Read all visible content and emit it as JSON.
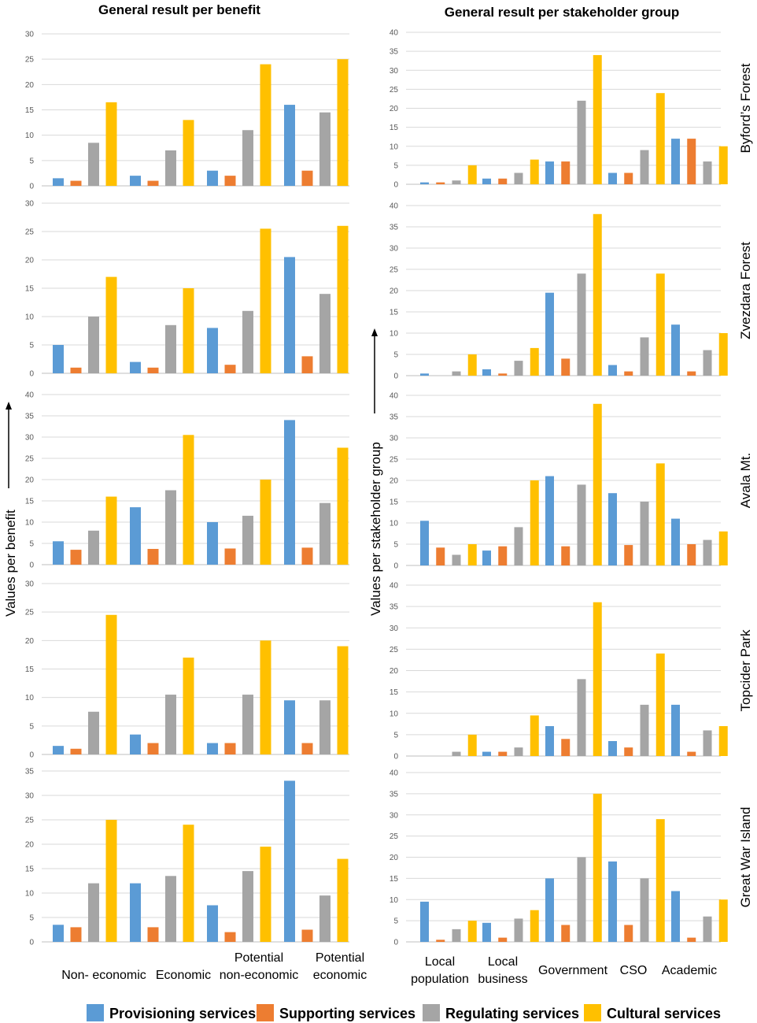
{
  "chart_data": {
    "type": "bar",
    "left_title": "General result per benefit",
    "right_title": "General result per stakeholder group",
    "left_ylabel": "Values per benefit",
    "right_ylabel": "Values per stakeholder group",
    "left_categories": [
      "Non- economic",
      "Economic",
      "Potential non-economic",
      "Potential economic"
    ],
    "left_category_lines": [
      [
        "Non- economic"
      ],
      [
        "Economic"
      ],
      [
        "Potential",
        "non-economic"
      ],
      [
        "Potential",
        "economic"
      ]
    ],
    "right_categories": [
      "Local population",
      "Local business",
      "Government",
      "CSO",
      "Academic"
    ],
    "right_category_lines": [
      [
        "Local",
        "population"
      ],
      [
        "Local",
        "business"
      ],
      [
        "Government"
      ],
      [
        "CSO"
      ],
      [
        "Academic"
      ]
    ],
    "series_names": [
      "Provisioning services",
      "Supporting services",
      "Regulating services",
      "Cultural services"
    ],
    "colors": [
      "#5B9BD5",
      "#ED7D31",
      "#A5A5A5",
      "#FFC000"
    ],
    "sites": [
      {
        "name": "Byford’s Forest",
        "left": {
          "ymax": 30,
          "ticks": [
            "0",
            "5",
            "10",
            "15",
            "20",
            "25",
            "30"
          ],
          "series": [
            [
              1.5,
              2,
              3,
              16
            ],
            [
              1,
              1,
              2,
              3
            ],
            [
              8.5,
              7,
              11,
              14.5
            ],
            [
              16.5,
              13,
              24,
              25
            ]
          ]
        },
        "right": {
          "ymax": 40,
          "ticks": [
            "0",
            "5",
            "10",
            "15",
            "20",
            "25",
            "30",
            "35",
            "40"
          ],
          "series": [
            [
              0.5,
              1.5,
              6,
              3,
              12
            ],
            [
              0.5,
              1.5,
              6,
              3,
              12
            ],
            [
              1,
              3,
              22,
              9,
              6
            ],
            [
              5,
              6.5,
              34,
              24,
              10
            ]
          ]
        }
      },
      {
        "name": "Zvezdara Forest",
        "left": {
          "ymax": 30,
          "ticks": [
            "0",
            "5",
            "10",
            "15",
            "20",
            "25",
            "30"
          ],
          "series": [
            [
              5,
              2,
              8,
              20.5
            ],
            [
              1,
              1,
              1.5,
              3
            ],
            [
              10,
              8.5,
              11,
              14
            ],
            [
              17,
              15,
              25.5,
              26
            ]
          ]
        },
        "right": {
          "ymax": 40,
          "ticks": [
            "0",
            "5",
            "10",
            "15",
            "20",
            "25",
            "30",
            "35",
            "40"
          ],
          "series": [
            [
              0.5,
              1.5,
              19.5,
              2.5,
              12
            ],
            [
              0,
              0.5,
              4,
              1,
              1
            ],
            [
              1,
              3.5,
              24,
              9,
              6
            ],
            [
              5,
              6.5,
              38,
              24,
              10
            ]
          ]
        }
      },
      {
        "name": "Avala Mt.",
        "left": {
          "ymax": 40,
          "ticks": [
            "0",
            "5",
            "10",
            "15",
            "20",
            "25",
            "30",
            "35",
            "40"
          ],
          "series": [
            [
              5.5,
              13.5,
              10,
              34
            ],
            [
              3.5,
              3.7,
              3.8,
              4
            ],
            [
              8,
              17.5,
              11.5,
              14.5
            ],
            [
              16,
              30.5,
              20,
              27.5
            ]
          ]
        },
        "right": {
          "ymax": 40,
          "ticks": [
            "0",
            "5",
            "10",
            "15",
            "20",
            "25",
            "30",
            "35",
            "40"
          ],
          "series": [
            [
              10.5,
              3.5,
              21,
              17,
              11
            ],
            [
              4.2,
              4.5,
              4.5,
              4.8,
              5
            ],
            [
              2.5,
              9,
              19,
              15,
              6
            ],
            [
              5,
              20,
              38,
              24,
              8
            ]
          ]
        }
      },
      {
        "name": "Topcider Park",
        "left": {
          "ymax": 30,
          "ticks": [
            "0",
            "5",
            "10",
            "15",
            "20",
            "25",
            "30"
          ],
          "series": [
            [
              1.5,
              3.5,
              2,
              9.5
            ],
            [
              1,
              2,
              2,
              2
            ],
            [
              7.5,
              10.5,
              10.5,
              9.5
            ],
            [
              24.5,
              17,
              20,
              19
            ]
          ]
        },
        "right": {
          "ymax": 40,
          "ticks": [
            "0",
            "5",
            "10",
            "15",
            "20",
            "25",
            "30",
            "35",
            "40"
          ],
          "series": [
            [
              0,
              1,
              7,
              3.5,
              12
            ],
            [
              0,
              1,
              4,
              2,
              1
            ],
            [
              1,
              2,
              18,
              12,
              6
            ],
            [
              5,
              9.5,
              36,
              24,
              7
            ]
          ]
        }
      },
      {
        "name": "Great War Island",
        "left": {
          "ymax": 35,
          "ticks": [
            "0",
            "5",
            "10",
            "15",
            "20",
            "25",
            "30",
            "35"
          ],
          "series": [
            [
              3.5,
              12,
              7.5,
              33
            ],
            [
              3,
              3,
              2,
              2.5
            ],
            [
              12,
              13.5,
              14.5,
              9.5
            ],
            [
              25,
              24,
              19.5,
              17
            ]
          ]
        },
        "right": {
          "ymax": 40,
          "ticks": [
            "0",
            "5",
            "10",
            "15",
            "20",
            "25",
            "30",
            "35",
            "40"
          ],
          "series": [
            [
              9.5,
              4.5,
              15,
              19,
              12
            ],
            [
              0.5,
              1,
              4,
              4,
              1
            ],
            [
              3,
              5.5,
              20,
              15,
              6
            ],
            [
              5,
              7.5,
              35,
              29,
              10
            ]
          ]
        }
      }
    ]
  }
}
